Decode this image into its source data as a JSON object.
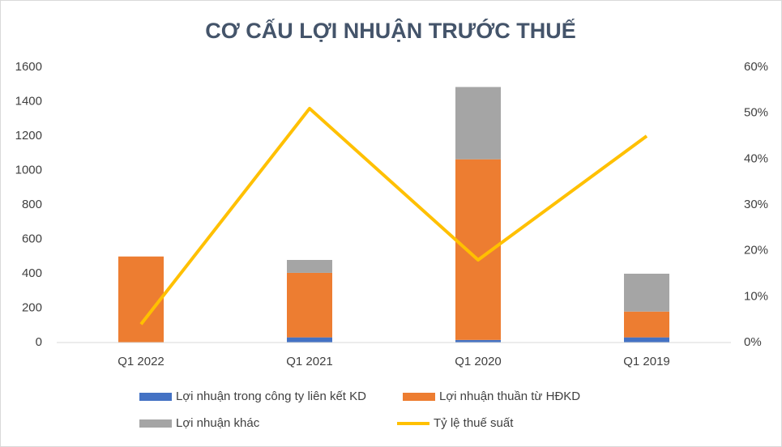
{
  "chart_data": {
    "type": "bar",
    "title": "CƠ CẤU LỢI NHUẬN TRƯỚC THUẾ",
    "categories": [
      "Q1 2022",
      "Q1 2021",
      "Q1 2020",
      "Q1 2019"
    ],
    "series": [
      {
        "name": "Lợi nhuận trong công ty liên kết KD",
        "color": "#4472c4",
        "values": [
          0,
          30,
          15,
          30
        ]
      },
      {
        "name": "Lợi nhuận thuần từ HĐKD",
        "color": "#ed7d31",
        "values": [
          500,
          375,
          1050,
          150
        ]
      },
      {
        "name": "Lợi nhuận khác",
        "color": "#a5a5a5",
        "values": [
          0,
          75,
          420,
          220
        ]
      },
      {
        "name": "Tỷ lệ thuế suất",
        "color": "#ffc000",
        "type": "line",
        "axis": "y2",
        "values": [
          4,
          51,
          18,
          45
        ]
      }
    ],
    "stacked": true,
    "ylim": [
      0,
      1600
    ],
    "yticks": [
      0,
      200,
      400,
      600,
      800,
      1000,
      1200,
      1400,
      1600
    ],
    "y2lim": [
      0,
      60
    ],
    "y2ticks": [
      {
        "value": 0,
        "label": "0%"
      },
      {
        "value": 10,
        "label": "10%"
      },
      {
        "value": 20,
        "label": "20%"
      },
      {
        "value": 30,
        "label": "30%"
      },
      {
        "value": 40,
        "label": "40%"
      },
      {
        "value": 50,
        "label": "50%"
      },
      {
        "value": 60,
        "label": "60%"
      }
    ],
    "grid": false,
    "legend": "bottom"
  }
}
